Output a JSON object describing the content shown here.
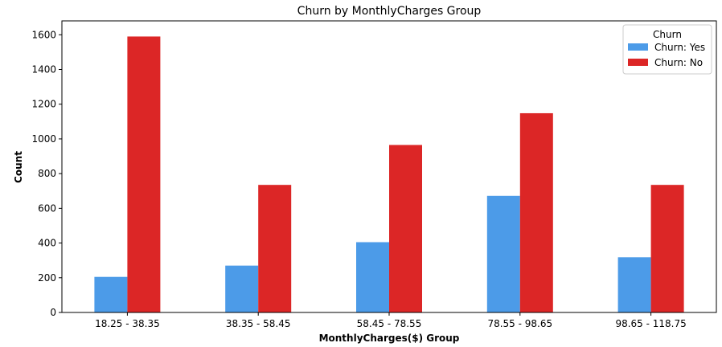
{
  "chart_data": {
    "type": "bar",
    "title": "Churn by MonthlyCharges Group",
    "xlabel": "MonthlyCharges($) Group",
    "ylabel": "Count",
    "categories": [
      "18.25 - 38.35",
      "38.35 - 58.45",
      "58.45 - 78.55",
      "78.55 - 98.65",
      "98.65 - 118.75"
    ],
    "series": [
      {
        "name": "Churn: Yes",
        "color": "#4c9be8",
        "values": [
          205,
          270,
          405,
          672,
          318
        ]
      },
      {
        "name": "Churn: No",
        "color": "#dc2626",
        "values": [
          1590,
          735,
          965,
          1148,
          735
        ]
      }
    ],
    "ylim": [
      0,
      1680
    ],
    "yticks": [
      0,
      200,
      400,
      600,
      800,
      1000,
      1200,
      1400,
      1600
    ],
    "grid": false,
    "legend": {
      "title": "Churn",
      "placement": "top-right"
    }
  }
}
